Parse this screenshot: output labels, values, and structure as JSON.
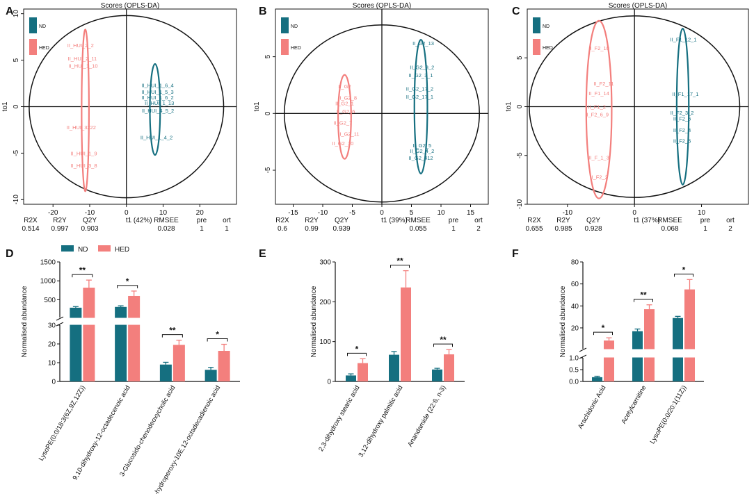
{
  "colors": {
    "nd": "#156f80",
    "hed": "#f37f7d",
    "axis": "#111111"
  },
  "legend": {
    "nd": "ND",
    "hed": "HED"
  },
  "chart_data": [
    {
      "panel": "A",
      "type": "scatter",
      "title": "Scores (OPLS-DA)",
      "xlabel": "t1 (42%)",
      "ylabel": "to1",
      "xlim": [
        -28,
        30
      ],
      "ylim": [
        -10.5,
        10.5
      ],
      "xticks": [
        -20,
        -10,
        0,
        10,
        20
      ],
      "yticks": [
        -10,
        -5,
        0,
        5,
        10
      ],
      "ellipse": {
        "cx": 0,
        "cy": 0,
        "rx": 26.5,
        "ry": 9.8
      },
      "group_ellipses": [
        {
          "group": "hed",
          "cx": -11.2,
          "cy": -0.4,
          "rx": 1.0,
          "ry": 8.7
        },
        {
          "group": "nd",
          "cx": 7.8,
          "cy": -0.3,
          "rx": 1.4,
          "ry": 4.9
        }
      ],
      "points": [
        {
          "label": "II_HUI_2_2",
          "x": -12.5,
          "y": 6.6,
          "group": "hed"
        },
        {
          "label": "II_HUI_2_11",
          "x": -12.0,
          "y": 5.2,
          "group": "hed"
        },
        {
          "label": "II_HUI_1_10",
          "x": -11.8,
          "y": 4.4,
          "group": "hed"
        },
        {
          "label": "II_HUI_3222",
          "x": -12.3,
          "y": -2.2,
          "group": "hed"
        },
        {
          "label": "II_HUI_1_9",
          "x": -11.6,
          "y": -5.0,
          "group": "hed"
        },
        {
          "label": "II_HUI_3_8",
          "x": -11.6,
          "y": -6.3,
          "group": "hed"
        },
        {
          "label": "II_HUI_1_6_4",
          "x": 8.5,
          "y": 2.3,
          "group": "nd"
        },
        {
          "label": "II_HUI_1_5_3",
          "x": 8.5,
          "y": 1.6,
          "group": "nd"
        },
        {
          "label": "II_HUI_1_6_2",
          "x": 8.5,
          "y": 1.0,
          "group": "nd"
        },
        {
          "label": "II_HUI_1_13",
          "x": 9.0,
          "y": 0.4,
          "group": "nd"
        },
        {
          "label": "II_HUI_4_5_2",
          "x": 8.6,
          "y": -0.4,
          "group": "nd"
        },
        {
          "label": "II_HUI_1_4_2",
          "x": 8.2,
          "y": -3.3,
          "group": "nd"
        }
      ],
      "stats": {
        "headers": [
          "R2X",
          "R2Y",
          "Q2Y",
          "RMSEE",
          "pre",
          "ort"
        ],
        "values": [
          "0.514",
          "0.997",
          "0.903",
          "0.028",
          "1",
          "1"
        ]
      }
    },
    {
      "panel": "B",
      "type": "scatter",
      "title": "Scores (OPLS-DA)",
      "xlabel": "t1 (39%)",
      "ylabel": "to1",
      "xlim": [
        -18,
        18
      ],
      "ylim": [
        -8,
        9.2
      ],
      "xticks": [
        -15,
        -10,
        -5,
        0,
        5,
        10,
        15
      ],
      "yticks": [
        -5,
        0,
        5
      ],
      "ellipse": {
        "cx": 0,
        "cy": 0,
        "rx": 16.5,
        "ry": 7.8
      },
      "group_ellipses": [
        {
          "group": "hed",
          "cx": -6.3,
          "cy": -0.3,
          "rx": 1.1,
          "ry": 3.7
        },
        {
          "group": "nd",
          "cx": 6.6,
          "cy": 0.6,
          "rx": 1.1,
          "ry": 5.9
        }
      ],
      "points": [
        {
          "label": "II_G2_13",
          "x": 7.0,
          "y": 6.2,
          "group": "nd"
        },
        {
          "label": "II_G2_3_2",
          "x": 6.8,
          "y": 4.1,
          "group": "nd"
        },
        {
          "label": "II_G2_3_1",
          "x": 6.6,
          "y": 3.4,
          "group": "nd"
        },
        {
          "label": "II_G2_17_2",
          "x": 6.4,
          "y": 2.2,
          "group": "nd"
        },
        {
          "label": "II_G2_17_1",
          "x": 6.4,
          "y": 1.5,
          "group": "nd"
        },
        {
          "label": "II_G2_5",
          "x": 6.8,
          "y": -2.8,
          "group": "nd"
        },
        {
          "label": "II_G2_4_2",
          "x": 6.8,
          "y": -3.3,
          "group": "nd"
        },
        {
          "label": "II_G2_412",
          "x": 6.6,
          "y": -3.9,
          "group": "nd"
        },
        {
          "label": "II_G2",
          "x": -6.3,
          "y": 2.4,
          "group": "hed"
        },
        {
          "label": "II_G2_8",
          "x": -5.8,
          "y": 1.4,
          "group": "hed"
        },
        {
          "label": "II_G2_1",
          "x": -6.3,
          "y": 0.9,
          "group": "hed"
        },
        {
          "label": "II_G2_6",
          "x": -6.1,
          "y": 0.2,
          "group": "hed"
        },
        {
          "label": "II_G2_7",
          "x": -6.6,
          "y": -0.8,
          "group": "hed"
        },
        {
          "label": "II_G2_11",
          "x": -5.6,
          "y": -1.8,
          "group": "hed"
        },
        {
          "label": "II_G2_10",
          "x": -6.6,
          "y": -2.6,
          "group": "hed"
        }
      ],
      "stats": {
        "headers": [
          "R2X",
          "R2Y",
          "Q2Y",
          "RMSEE",
          "pre",
          "ort"
        ],
        "values": [
          "0.6",
          "0.99",
          "0.939",
          "0.055",
          "1",
          "2"
        ]
      }
    },
    {
      "panel": "C",
      "type": "scatter",
      "title": "Scores (OPLS-DA)",
      "xlabel": "t1 (37%)",
      "ylabel": "to1",
      "xlim": [
        -16,
        17
      ],
      "ylim": [
        -10,
        10
      ],
      "xticks": [
        -10,
        0,
        10
      ],
      "yticks": [
        -10,
        -5,
        0,
        5
      ],
      "ellipse": {
        "cx": 0,
        "cy": 0,
        "rx": 15.7,
        "ry": 9.3
      },
      "group_ellipses": [
        {
          "group": "hed",
          "cx": -5.3,
          "cy": -0.3,
          "rx": 1.9,
          "ry": 9.1
        },
        {
          "group": "nd",
          "cx": 7.2,
          "cy": 0.0,
          "rx": 0.9,
          "ry": 8.0
        }
      ],
      "points": [
        {
          "label": "II_F2_10",
          "x": -5.3,
          "y": 6.0,
          "group": "hed"
        },
        {
          "label": "II_F2_11",
          "x": -4.6,
          "y": 2.4,
          "group": "hed"
        },
        {
          "label": "II_F1_14",
          "x": -5.3,
          "y": 1.4,
          "group": "hed"
        },
        {
          "label": "II_F1_2",
          "x": -5.6,
          "y": 0.0,
          "group": "hed"
        },
        {
          "label": "II_F2_6_9",
          "x": -5.6,
          "y": -0.8,
          "group": "hed"
        },
        {
          "label": "II_F_1_3",
          "x": -5.3,
          "y": -5.2,
          "group": "hed"
        },
        {
          "label": "II_F2_2",
          "x": -5.3,
          "y": -7.2,
          "group": "hed"
        },
        {
          "label": "II_F1_12_1",
          "x": 7.3,
          "y": 6.9,
          "group": "nd"
        },
        {
          "label": "II_F1_17_1",
          "x": 7.6,
          "y": 1.3,
          "group": "nd"
        },
        {
          "label": "II_F2_3_2",
          "x": 7.1,
          "y": -0.6,
          "group": "nd"
        },
        {
          "label": "II_F2_6",
          "x": 7.1,
          "y": -1.2,
          "group": "nd"
        },
        {
          "label": "II_F2_4",
          "x": 7.1,
          "y": -2.4,
          "group": "nd"
        },
        {
          "label": "II_F2_5",
          "x": 7.1,
          "y": -3.5,
          "group": "nd"
        }
      ],
      "stats": {
        "headers": [
          "R2X",
          "R2Y",
          "Q2Y",
          "RMSEE",
          "pre",
          "ort"
        ],
        "values": [
          "0.655",
          "0.985",
          "0.928",
          "0.068",
          "1",
          "2"
        ]
      }
    },
    {
      "panel": "D",
      "type": "bar",
      "ylabel": "Normalised abundance",
      "categories": [
        "LysoPE(0:0/18:3(6Z,9Z,12Z))",
        "9,10-dihydroxy-12-octadecenoic acid",
        "3-Glucosido-chenodeoxycholic acid",
        "9-hydroperoxy-10E,12-octadecadienoic acid"
      ],
      "series": [
        {
          "name": "ND",
          "values": [
            290,
            310,
            9,
            6.2
          ],
          "errors": [
            30,
            30,
            1.2,
            1.3
          ]
        },
        {
          "name": "HED",
          "values": [
            820,
            600,
            19.5,
            16.3
          ],
          "errors": [
            200,
            130,
            2.5,
            3.5
          ]
        }
      ],
      "axis_break": {
        "lower": [
          0,
          30
        ],
        "upper": [
          30,
          1500
        ],
        "lower_ticks": [
          0,
          10,
          20,
          30
        ],
        "upper_ticks": [
          500,
          1000,
          1500
        ]
      },
      "significance": [
        "**",
        "*",
        "**",
        "*"
      ]
    },
    {
      "panel": "E",
      "type": "bar",
      "ylabel": "Normalised abundance",
      "categories": [
        "2,3-dihydroxy stearic acid",
        "3,12-dihydroxy palmitic acid",
        "Anandamide (22:6, n-3)"
      ],
      "series": [
        {
          "name": "ND",
          "values": [
            15,
            67,
            30
          ],
          "errors": [
            4,
            8,
            3
          ]
        },
        {
          "name": "HED",
          "values": [
            46,
            236,
            68
          ],
          "errors": [
            11,
            42,
            12
          ]
        }
      ],
      "ylim": [
        0,
        300
      ],
      "yticks": [
        0,
        100,
        200,
        300
      ],
      "significance": [
        "*",
        "**",
        "**"
      ]
    },
    {
      "panel": "F",
      "type": "bar",
      "ylabel": "Normalised abundance",
      "categories": [
        "Arachidonic Acid",
        "Acetylcarnitine",
        "LysoPE(0:0/20:1(11Z))"
      ],
      "series": [
        {
          "name": "ND",
          "values": [
            0.18,
            17,
            29
          ],
          "errors": [
            0.04,
            2,
            1.5
          ]
        },
        {
          "name": "HED",
          "values": [
            8.5,
            37,
            55
          ],
          "errors": [
            2.5,
            4,
            9
          ]
        }
      ],
      "axis_break": {
        "lower": [
          0,
          1.0
        ],
        "upper": [
          1.0,
          80
        ],
        "lower_ticks": [
          0.0,
          0.5,
          1.0
        ],
        "upper_ticks": [
          20,
          40,
          60,
          80
        ]
      },
      "significance": [
        "*",
        "**",
        "*"
      ]
    }
  ]
}
